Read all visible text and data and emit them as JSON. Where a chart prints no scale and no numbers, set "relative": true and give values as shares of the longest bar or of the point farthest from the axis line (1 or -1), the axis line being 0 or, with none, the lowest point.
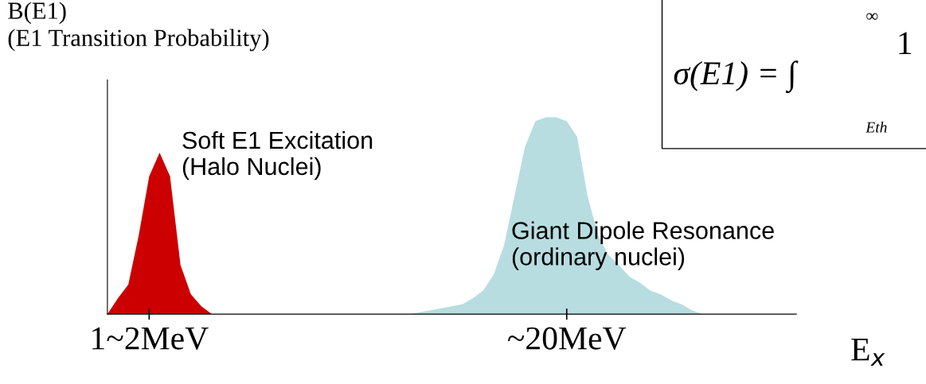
{
  "chart_data": {
    "type": "area",
    "relative": true,
    "ylabel": "B(E1)\n(E1 Transition Probability)",
    "xlabel": "E$_{x}$",
    "categories": [
      null,
      null,
      null,
      null,
      "1~2MeV",
      null,
      null,
      null,
      null,
      null,
      null,
      null,
      null,
      null,
      null,
      null,
      null,
      null,
      null,
      null,
      null,
      null,
      null,
      null,
      null,
      null,
      null,
      null,
      null,
      null,
      null,
      null,
      null,
      null,
      null,
      null,
      null,
      null,
      null,
      null,
      null,
      null,
      null,
      null,
      "~20MeV",
      null,
      null,
      null,
      null,
      null,
      null,
      null,
      null,
      null,
      null,
      null,
      null,
      null,
      null,
      null,
      null,
      null,
      null,
      null,
      null,
      null,
      null
    ],
    "series": [
      {
        "color": "#cc0000",
        "values": [
          0,
          0.08,
          0.15,
          0.4,
          0.7,
          0.82,
          0.7,
          0.25,
          0.1,
          0.04,
          0,
          null,
          null,
          null,
          null,
          null,
          null,
          null,
          null,
          null,
          null,
          null,
          null,
          null,
          null,
          null,
          null,
          null,
          null,
          null,
          null,
          null,
          null,
          null,
          null,
          null,
          null,
          null,
          null,
          null,
          null,
          null,
          null,
          null,
          null,
          null,
          null,
          null,
          null,
          null,
          null,
          null,
          null,
          null,
          null,
          null,
          null,
          null,
          null,
          null,
          null,
          null,
          null,
          null,
          null,
          null,
          null
        ]
      },
      {
        "color": "#b7dde0",
        "values": [
          null,
          null,
          null,
          null,
          null,
          null,
          null,
          null,
          null,
          null,
          null,
          null,
          null,
          null,
          null,
          null,
          null,
          null,
          null,
          null,
          null,
          null,
          null,
          null,
          null,
          null,
          null,
          null,
          null,
          0,
          0.01,
          0.02,
          0.03,
          0.04,
          0.05,
          0.08,
          0.12,
          0.2,
          0.35,
          0.6,
          0.85,
          0.98,
          1,
          1,
          0.98,
          0.9,
          0.6,
          0.4,
          0.3,
          0.25,
          0.19,
          0.16,
          0.12,
          0.1,
          0.07,
          0.05,
          0.02,
          0,
          null,
          null,
          null,
          null,
          null,
          null,
          null,
          null,
          null
        ]
      }
    ],
    "annotations": [
      "Soft E1 Excitation\n(Halo Nuclei)",
      "Giant Dipole Resonance\n(ordinary nuclei)",
      "σ(E1) = ∫",
      "∞",
      "Eth",
      "1"
    ]
  }
}
